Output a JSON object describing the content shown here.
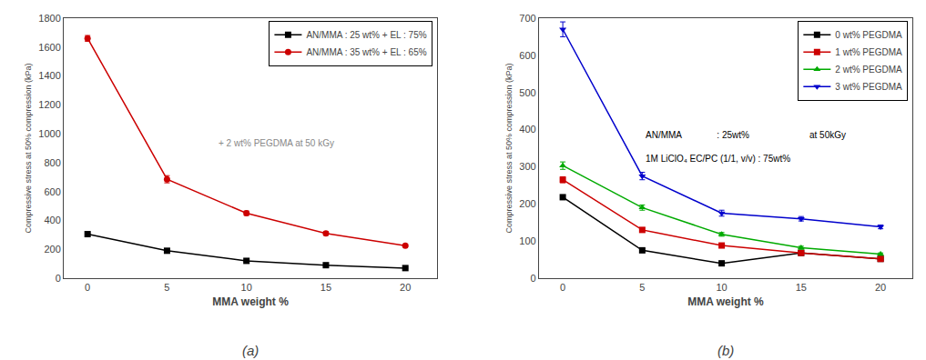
{
  "chart_data": [
    {
      "type": "line",
      "title": "(a)",
      "x": [
        0,
        5,
        10,
        15,
        20
      ],
      "xlabel": "MMA weight %",
      "ylabel": "Compressive stress at 50% compression (kPa)",
      "xlim": [
        -1.5,
        22
      ],
      "xticks": [
        0,
        5,
        10,
        15,
        20
      ],
      "ylim": [
        0,
        1800
      ],
      "yticks": [
        0,
        200,
        400,
        600,
        800,
        1000,
        1200,
        1400,
        1600,
        1800
      ],
      "grid": false,
      "legend": "upper right",
      "annotations": [
        "+ 2 wt% PEGDMA at 50 kGy"
      ],
      "series": [
        {
          "name": "AN/MMA : 25 wt% + EL : 75%",
          "color": "#000000",
          "marker": "square",
          "line_style": "solid",
          "values": [
            305,
            190,
            120,
            90,
            70
          ],
          "errors": [
            10,
            8,
            6,
            5,
            5
          ]
        },
        {
          "name": "AN/MMA : 35 wt% + EL : 65%",
          "color": "#cc0000",
          "marker": "circle",
          "line_style": "solid",
          "values": [
            1660,
            685,
            450,
            310,
            225
          ],
          "errors": [
            20,
            25,
            15,
            12,
            8
          ]
        }
      ]
    },
    {
      "type": "line",
      "title": "(b)",
      "x": [
        0,
        5,
        10,
        15,
        20
      ],
      "xlabel": "MMA weight %",
      "ylabel": "Compressive stress at 50% compression (kPa)",
      "xlim": [
        -1.5,
        22
      ],
      "xticks": [
        0,
        5,
        10,
        15,
        20
      ],
      "ylim": [
        0,
        700
      ],
      "yticks": [
        0,
        100,
        200,
        300,
        400,
        500,
        600,
        700
      ],
      "grid": false,
      "legend": "upper right",
      "annotations": [
        "AN/MMA              : 25wt%",
        "1M LiClO₄ EC/PC (1/1, v/v) : 75wt%",
        "at 50kGy"
      ],
      "series": [
        {
          "name": "0 wt% PEGDMA",
          "color": "#000000",
          "marker": "square",
          "line_style": "solid",
          "values": [
            218,
            75,
            40,
            68,
            52
          ],
          "errors": [
            6,
            4,
            3,
            3,
            3
          ]
        },
        {
          "name": "1 wt% PEGDMA",
          "color": "#cc0000",
          "marker": "square",
          "line_style": "solid",
          "values": [
            265,
            130,
            88,
            68,
            52
          ],
          "errors": [
            8,
            5,
            4,
            4,
            3
          ]
        },
        {
          "name": "2 wt% PEGDMA",
          "color": "#00aa00",
          "marker": "triangle-up",
          "line_style": "solid",
          "values": [
            303,
            190,
            118,
            82,
            65
          ],
          "errors": [
            10,
            7,
            5,
            4,
            3
          ]
        },
        {
          "name": "3 wt% PEGDMA",
          "color": "#0000cc",
          "marker": "triangle-down",
          "line_style": "solid",
          "values": [
            670,
            275,
            175,
            160,
            138
          ],
          "errors": [
            20,
            10,
            8,
            6,
            5
          ]
        }
      ]
    }
  ]
}
